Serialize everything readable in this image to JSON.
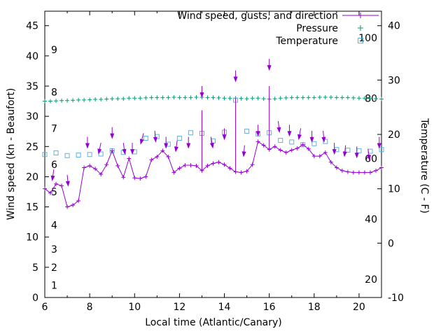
{
  "chart_data": {
    "type": "line",
    "title": "",
    "xlabel": "Local time (Atlantic/Canary)",
    "ylabel_left": "Wind speed (kn - Beaufort)",
    "ylabel_right": "Temperature (C - F)",
    "x_range": [
      6,
      21
    ],
    "y_left_range": [
      0,
      47.4
    ],
    "y_right_range": [
      -10,
      42.7
    ],
    "x_major_ticks": [
      6,
      8,
      10,
      12,
      14,
      16,
      18,
      20
    ],
    "x_minor_ticks": [
      7,
      9,
      11,
      13,
      15,
      17,
      19
    ],
    "y_left_ticks": [
      0,
      5,
      10,
      15,
      20,
      25,
      30,
      35,
      40,
      45
    ],
    "y_right_ticks": [
      -10,
      0,
      10,
      20,
      30,
      40
    ],
    "beaufort_labels": [
      {
        "text": "1",
        "kn": 2
      },
      {
        "text": "2",
        "kn": 5
      },
      {
        "text": "3",
        "kn": 8
      },
      {
        "text": "4",
        "kn": 12
      },
      {
        "text": "5",
        "kn": 17.5
      },
      {
        "text": "6",
        "kn": 22
      },
      {
        "text": "7",
        "kn": 28
      },
      {
        "text": "8",
        "kn": 34
      },
      {
        "text": "9",
        "kn": 41
      }
    ],
    "fahrenheit_labels": [
      {
        "text": "20",
        "f": 20
      },
      {
        "text": "40",
        "f": 40
      },
      {
        "text": "60",
        "f": 60
      },
      {
        "text": "80",
        "f": 80
      },
      {
        "text": "100",
        "f": 100
      }
    ],
    "legend": [
      {
        "label": "Wind speed, gusts, and direction",
        "marker": "line-plus",
        "color": "#9400D3"
      },
      {
        "label": "Pressure",
        "marker": "plus",
        "color": "#009E73"
      },
      {
        "label": "Temperature",
        "marker": "square",
        "color": "#56B4E9"
      }
    ],
    "colors": {
      "wind": "#9400D3",
      "pressure": "#009E73",
      "temperature": "#56B4E9",
      "axis": "#000000"
    },
    "wind_kn": {
      "x_start": 6,
      "x_step": 0.25,
      "values": [
        18.0,
        17.3,
        18.8,
        18.5,
        15.0,
        15.3,
        16.0,
        21.5,
        21.8,
        21.3,
        20.4,
        22.0,
        24.3,
        21.8,
        19.9,
        23.0,
        19.8,
        19.7,
        20.0,
        22.8,
        23.3,
        24.3,
        23.3,
        20.7,
        21.4,
        21.9,
        21.9,
        21.8,
        21.0,
        21.8,
        22.2,
        22.4,
        22.0,
        21.4,
        20.8,
        20.7,
        20.9,
        22.0,
        25.8,
        25.2,
        24.5,
        25.0,
        24.4,
        24.0,
        24.4,
        24.7,
        25.3,
        24.6,
        23.4,
        23.4,
        24.0,
        22.4,
        21.5,
        21.0,
        20.8,
        20.7,
        20.7,
        20.7,
        20.7,
        21.0,
        21.5
      ]
    },
    "pressure_level": {
      "x_start": 6,
      "x_step": 0.25,
      "values": [
        32.5,
        32.5,
        32.55,
        32.6,
        32.6,
        32.65,
        32.7,
        32.7,
        32.75,
        32.8,
        32.8,
        32.85,
        32.9,
        32.9,
        32.9,
        33.0,
        33.0,
        33.0,
        33.05,
        33.1,
        33.1,
        33.1,
        33.1,
        33.15,
        33.1,
        33.1,
        33.1,
        33.15,
        33.15,
        33.1,
        33.1,
        33.05,
        33.0,
        33.0,
        33.0,
        32.95,
        32.9,
        33.0,
        33.0,
        32.9,
        32.85,
        32.9,
        33.0,
        33.05,
        33.1,
        33.1,
        33.1,
        33.1,
        33.1,
        33.15,
        33.15,
        33.15,
        33.1,
        33.1,
        33.1,
        33.05,
        33.0,
        33.0,
        32.95,
        32.9,
        32.85
      ]
    },
    "temperature_c": {
      "x_start": 6,
      "x_step": 0.5,
      "values": [
        16.3,
        16.6,
        16.1,
        16.2,
        16.3,
        16.4,
        17.0,
        16.7,
        16.8,
        19.3,
        19.6,
        18.2,
        19.3,
        20.3,
        20.2,
        18.8,
        20.4,
        26.3,
        20.6,
        20.1,
        20.3,
        18.9,
        18.6,
        18.1,
        18.3,
        18.7,
        17.2,
        17.1,
        17.0,
        16.9,
        17.2
      ]
    },
    "gusts": [
      {
        "x": 13.0,
        "from": 21.0,
        "to": 31.0
      },
      {
        "x": 14.5,
        "from": 20.8,
        "to": 33.0
      },
      {
        "x": 16.0,
        "from": 24.5,
        "to": 35.0
      }
    ],
    "arrows": [
      [
        6.4,
        21.2,
        8
      ],
      [
        7.0,
        20.3,
        -5
      ],
      [
        7.9,
        26.6,
        0
      ],
      [
        8.5,
        25.6,
        12
      ],
      [
        9.0,
        28.2,
        0
      ],
      [
        9.5,
        25.6,
        -8
      ],
      [
        9.9,
        25.6,
        0
      ],
      [
        10.4,
        27.2,
        15
      ],
      [
        10.9,
        27.6,
        -5
      ],
      [
        11.4,
        26.6,
        0
      ],
      [
        11.9,
        26.0,
        8
      ],
      [
        12.4,
        26.6,
        0
      ],
      [
        13.0,
        35.0,
        0
      ],
      [
        13.4,
        26.6,
        -10
      ],
      [
        14.0,
        28.0,
        0
      ],
      [
        14.5,
        37.6,
        0
      ],
      [
        14.9,
        25.2,
        5
      ],
      [
        15.5,
        28.6,
        0
      ],
      [
        16.0,
        39.5,
        0
      ],
      [
        16.4,
        29.2,
        -6
      ],
      [
        16.9,
        28.6,
        0
      ],
      [
        17.4,
        28.0,
        10
      ],
      [
        17.9,
        27.6,
        0
      ],
      [
        18.4,
        27.6,
        -5
      ],
      [
        18.9,
        25.6,
        0
      ],
      [
        19.4,
        25.2,
        6
      ],
      [
        19.9,
        25.0,
        0
      ],
      [
        20.4,
        24.6,
        -8
      ],
      [
        20.9,
        26.6,
        0
      ]
    ]
  }
}
